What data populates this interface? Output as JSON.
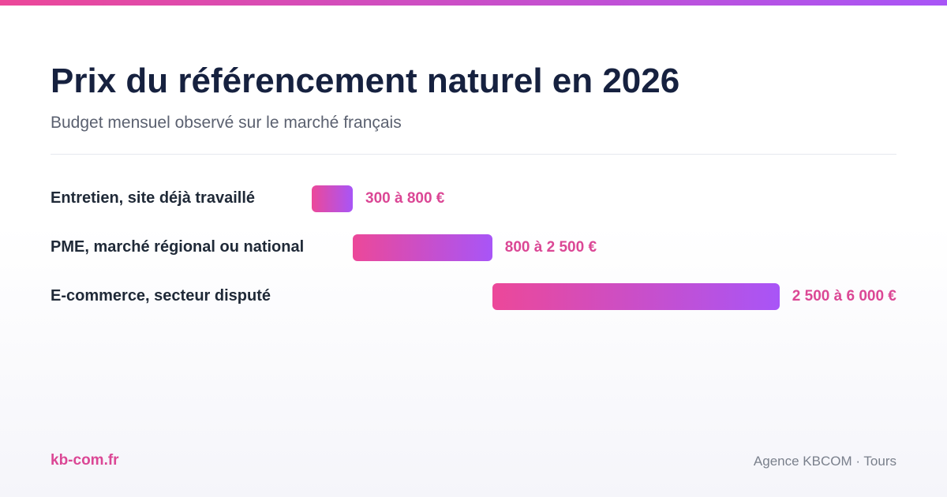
{
  "header": {
    "title": "Prix du référencement naturel en 2026",
    "subtitle": "Budget mensuel observé sur le marché français"
  },
  "colors": {
    "accent_start": "#ec4899",
    "accent_end": "#a855f7",
    "value_text": "#db4795",
    "title_text": "#16213f"
  },
  "chart_data": {
    "type": "bar",
    "orientation": "horizontal-range",
    "unit": "€",
    "categories": [
      "Entretien, site déjà travaillé",
      "PME, marché régional ou national",
      "E-commerce, secteur disputé"
    ],
    "ranges": [
      {
        "min": 300,
        "max": 800,
        "label": "300 à 800 €"
      },
      {
        "min": 800,
        "max": 2500,
        "label": "800 à 2 500 €"
      },
      {
        "min": 2500,
        "max": 6000,
        "label": "2 500 à 6 000 €"
      }
    ],
    "grid": false
  },
  "footer": {
    "site": "kb-com.fr",
    "agency": "Agence KBCOM · Tours"
  }
}
